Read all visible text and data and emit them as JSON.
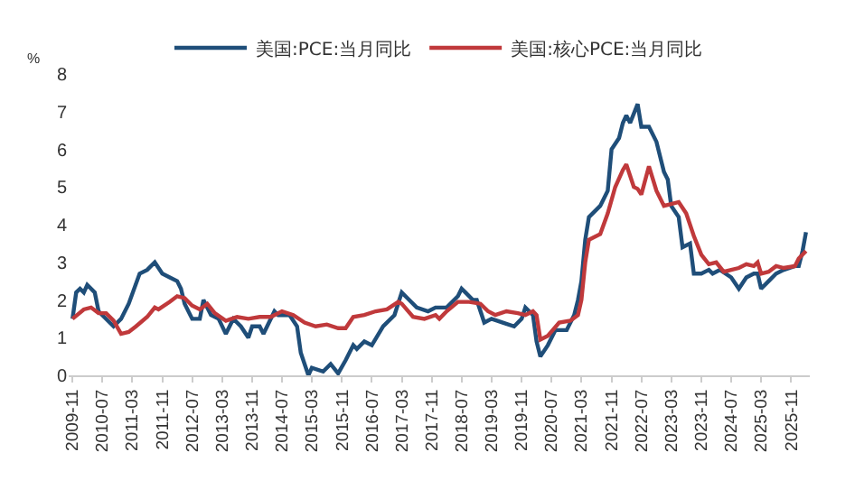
{
  "chart_data": {
    "type": "line",
    "ylabel": "%",
    "legend": "top",
    "grid": false,
    "marker": "none",
    "line_style": "solid",
    "xlim": [
      "2009-10",
      "2026-04"
    ],
    "xticks": [
      "2009-11",
      "2010-07",
      "2011-03",
      "2011-11",
      "2012-07",
      "2013-03",
      "2013-11",
      "2014-07",
      "2015-03",
      "2015-11",
      "2016-07",
      "2017-03",
      "2017-11",
      "2018-07",
      "2019-03",
      "2019-11",
      "2020-07",
      "2021-03",
      "2021-11",
      "2022-07",
      "2023-03",
      "2023-11",
      "2024-07",
      "2025-03",
      "2025-11"
    ],
    "ylim": [
      0,
      8
    ],
    "yticks": [
      0,
      1,
      2,
      3,
      4,
      5,
      6,
      7,
      8
    ],
    "series": [
      {
        "name": "美国:PCE:当月同比",
        "color": "#1f4e79",
        "x": [
          "2009-11",
          "2009-12",
          "2010-01",
          "2010-02",
          "2010-03",
          "2010-05",
          "2010-06",
          "2010-07",
          "2010-10",
          "2010-12",
          "2011-02",
          "2011-05",
          "2011-07",
          "2011-09",
          "2011-11",
          "2012-01",
          "2012-03",
          "2012-04",
          "2012-05",
          "2012-07",
          "2012-09",
          "2012-10",
          "2012-12",
          "2013-02",
          "2013-04",
          "2013-06",
          "2013-08",
          "2013-10",
          "2013-11",
          "2014-01",
          "2014-02",
          "2014-05",
          "2014-06",
          "2014-09",
          "2014-11",
          "2014-12",
          "2015-02",
          "2015-03",
          "2015-06",
          "2015-08",
          "2015-10",
          "2015-12",
          "2016-02",
          "2016-03",
          "2016-05",
          "2016-07",
          "2016-10",
          "2017-01",
          "2017-03",
          "2017-05",
          "2017-07",
          "2017-10",
          "2017-12",
          "2018-03",
          "2018-06",
          "2018-07",
          "2018-08",
          "2018-10",
          "2018-11",
          "2019-01",
          "2019-03",
          "2019-06",
          "2019-09",
          "2019-11",
          "2019-12",
          "2020-02",
          "2020-03",
          "2020-04",
          "2020-06",
          "2020-08",
          "2020-11",
          "2021-01",
          "2021-02",
          "2021-03",
          "2021-04",
          "2021-05",
          "2021-08",
          "2021-10",
          "2021-11",
          "2022-01",
          "2022-02",
          "2022-03",
          "2022-04",
          "2022-06",
          "2022-07",
          "2022-09",
          "2022-11",
          "2023-01",
          "2023-02",
          "2023-03",
          "2023-05",
          "2023-06",
          "2023-08",
          "2023-09",
          "2023-11",
          "2024-01",
          "2024-02",
          "2024-04",
          "2024-07",
          "2024-09",
          "2024-11",
          "2025-01",
          "2025-02",
          "2025-03",
          "2025-05",
          "2025-07",
          "2025-09",
          "2025-12",
          "2026-01",
          "2026-02",
          "2026-03"
        ],
        "values": [
          1.5,
          2.2,
          2.3,
          2.2,
          2.4,
          2.2,
          1.7,
          1.6,
          1.3,
          1.5,
          1.9,
          2.7,
          2.8,
          3.0,
          2.7,
          2.6,
          2.5,
          2.3,
          1.9,
          1.5,
          1.5,
          2.0,
          1.6,
          1.5,
          1.1,
          1.5,
          1.3,
          1.0,
          1.3,
          1.3,
          1.1,
          1.7,
          1.6,
          1.6,
          1.3,
          0.6,
          0.0,
          0.2,
          0.1,
          0.3,
          0.05,
          0.4,
          0.8,
          0.7,
          0.9,
          0.8,
          1.3,
          1.6,
          2.2,
          2.0,
          1.8,
          1.7,
          1.8,
          1.8,
          2.1,
          2.3,
          2.2,
          2.0,
          2.0,
          1.4,
          1.5,
          1.4,
          1.3,
          1.5,
          1.8,
          1.6,
          0.9,
          0.5,
          0.8,
          1.2,
          1.2,
          1.6,
          2.0,
          2.5,
          3.6,
          4.2,
          4.5,
          4.9,
          6.0,
          6.3,
          6.7,
          6.9,
          6.7,
          7.2,
          6.6,
          6.6,
          6.2,
          5.4,
          5.2,
          4.5,
          4.2,
          3.4,
          3.5,
          2.7,
          2.7,
          2.8,
          2.7,
          2.8,
          2.6,
          2.3,
          2.6,
          2.7,
          2.7,
          2.3,
          2.5,
          2.7,
          2.8,
          2.9,
          2.9,
          3.3,
          3.8
        ]
      },
      {
        "name": "美国:核心PCE:当月同比",
        "color": "#c0393b",
        "x": [
          "2009-11",
          "2010-02",
          "2010-04",
          "2010-06",
          "2010-08",
          "2010-10",
          "2010-12",
          "2011-02",
          "2011-04",
          "2011-07",
          "2011-09",
          "2011-10",
          "2012-01",
          "2012-03",
          "2012-05",
          "2012-07",
          "2012-09",
          "2012-11",
          "2013-01",
          "2013-04",
          "2013-07",
          "2013-10",
          "2014-01",
          "2014-04",
          "2014-07",
          "2014-10",
          "2015-01",
          "2015-04",
          "2015-07",
          "2015-10",
          "2015-12",
          "2016-02",
          "2016-05",
          "2016-08",
          "2016-11",
          "2017-02",
          "2017-03",
          "2017-06",
          "2017-09",
          "2017-12",
          "2018-01",
          "2018-03",
          "2018-06",
          "2018-09",
          "2018-12",
          "2019-02",
          "2019-04",
          "2019-07",
          "2019-10",
          "2019-12",
          "2020-02",
          "2020-03",
          "2020-04",
          "2020-06",
          "2020-09",
          "2020-12",
          "2021-02",
          "2021-03",
          "2021-04",
          "2021-05",
          "2021-08",
          "2021-10",
          "2021-12",
          "2022-02",
          "2022-03",
          "2022-05",
          "2022-06",
          "2022-07",
          "2022-09",
          "2022-11",
          "2023-01",
          "2023-03",
          "2023-05",
          "2023-07",
          "2023-09",
          "2023-11",
          "2024-01",
          "2024-03",
          "2024-05",
          "2024-07",
          "2024-09",
          "2024-11",
          "2025-01",
          "2025-02",
          "2025-03",
          "2025-05",
          "2025-07",
          "2025-09",
          "2025-12",
          "2026-01",
          "2026-03"
        ],
        "values": [
          1.5,
          1.75,
          1.8,
          1.65,
          1.65,
          1.45,
          1.1,
          1.15,
          1.3,
          1.55,
          1.8,
          1.75,
          1.95,
          2.1,
          2.05,
          1.85,
          1.75,
          1.9,
          1.65,
          1.45,
          1.55,
          1.5,
          1.55,
          1.55,
          1.7,
          1.6,
          1.4,
          1.3,
          1.35,
          1.25,
          1.25,
          1.55,
          1.6,
          1.7,
          1.75,
          1.95,
          1.9,
          1.55,
          1.5,
          1.6,
          1.5,
          1.7,
          1.95,
          1.95,
          1.9,
          1.7,
          1.6,
          1.7,
          1.65,
          1.6,
          1.7,
          1.6,
          0.95,
          1.05,
          1.4,
          1.45,
          1.6,
          2.0,
          3.0,
          3.6,
          3.75,
          4.3,
          5.0,
          5.45,
          5.6,
          5.0,
          4.95,
          4.8,
          5.55,
          4.9,
          4.5,
          4.55,
          4.6,
          4.3,
          3.7,
          3.2,
          2.95,
          3.0,
          2.75,
          2.8,
          2.85,
          2.95,
          2.9,
          3.0,
          2.7,
          2.75,
          2.9,
          2.85,
          2.9,
          3.1,
          3.3
        ]
      }
    ]
  }
}
